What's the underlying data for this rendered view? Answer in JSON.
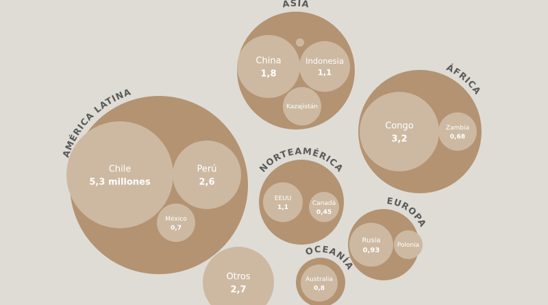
{
  "chart_data": {
    "type": "packed-bubble",
    "group_color": "#b39372",
    "bubble_color": "#cdb9a1",
    "groups": [
      {
        "name": "AMÉRICA LATINA",
        "categories": [
          "Chile",
          "Perú",
          "México"
        ],
        "values": [
          5.3,
          2.6,
          0.7
        ],
        "value_labels": [
          "5,3 millones",
          "2,6",
          "0,7"
        ]
      },
      {
        "name": "ASIA",
        "categories": [
          "China",
          "Indonesia",
          "Kazajistán",
          null
        ],
        "values": [
          1.8,
          1.1,
          0.6,
          0.03
        ],
        "value_labels": [
          "1,8",
          "1,1",
          null,
          null
        ]
      },
      {
        "name": "ÁFRICA",
        "categories": [
          "Congo",
          "Zambia"
        ],
        "values": [
          3.2,
          0.68
        ],
        "value_labels": [
          "3,2",
          "0,68"
        ]
      },
      {
        "name": "NORTEAMÉRICA",
        "categories": [
          "EEUU",
          "Canadá"
        ],
        "values": [
          1.1,
          0.45
        ],
        "value_labels": [
          "1,1",
          "0,45"
        ]
      },
      {
        "name": "EUROPA",
        "categories": [
          "Rusia",
          "Polonia"
        ],
        "values": [
          0.93,
          0.36
        ],
        "value_labels": [
          "0,93",
          null
        ]
      },
      {
        "name": "OCEANÍA",
        "categories": [
          "Australia"
        ],
        "values": [
          0.8
        ],
        "value_labels": [
          "0,8"
        ]
      },
      {
        "name": null,
        "categories": [
          "Otros"
        ],
        "values": [
          2.7
        ],
        "value_labels": [
          "2,7"
        ]
      }
    ]
  }
}
